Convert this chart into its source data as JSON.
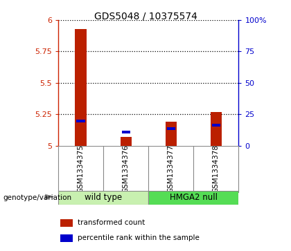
{
  "title": "GDS5048 / 10375574",
  "samples": [
    "GSM1334375",
    "GSM1334376",
    "GSM1334377",
    "GSM1334378"
  ],
  "red_values": [
    5.93,
    5.07,
    5.19,
    5.27
  ],
  "blue_values": [
    5.195,
    5.11,
    5.135,
    5.165
  ],
  "ymin": 5.0,
  "ymax": 6.0,
  "yticks": [
    5.0,
    5.25,
    5.5,
    5.75,
    6.0
  ],
  "ytick_labels": [
    "5",
    "5.25",
    "5.5",
    "5.75",
    "6"
  ],
  "right_yticks": [
    0,
    25,
    50,
    75,
    100
  ],
  "right_ytick_labels": [
    "0",
    "25",
    "50",
    "75",
    "100%"
  ],
  "left_axis_color": "#cc2200",
  "right_axis_color": "#0000cc",
  "bar_color": "#bb2000",
  "blue_color": "#0000cc",
  "groups": [
    {
      "label": "wild type",
      "samples": [
        0,
        1
      ],
      "color": "#c8f0b0"
    },
    {
      "label": "HMGA2 null",
      "samples": [
        2,
        3
      ],
      "color": "#55dd55"
    }
  ],
  "group_label_prefix": "genotype/variation",
  "legend_items": [
    {
      "color": "#bb2000",
      "label": "transformed count"
    },
    {
      "color": "#0000cc",
      "label": "percentile rank within the sample"
    }
  ],
  "bar_width": 0.25,
  "bg_color": "#d4d4d4",
  "plot_bg": "#ffffff",
  "grid_color": "#000000"
}
